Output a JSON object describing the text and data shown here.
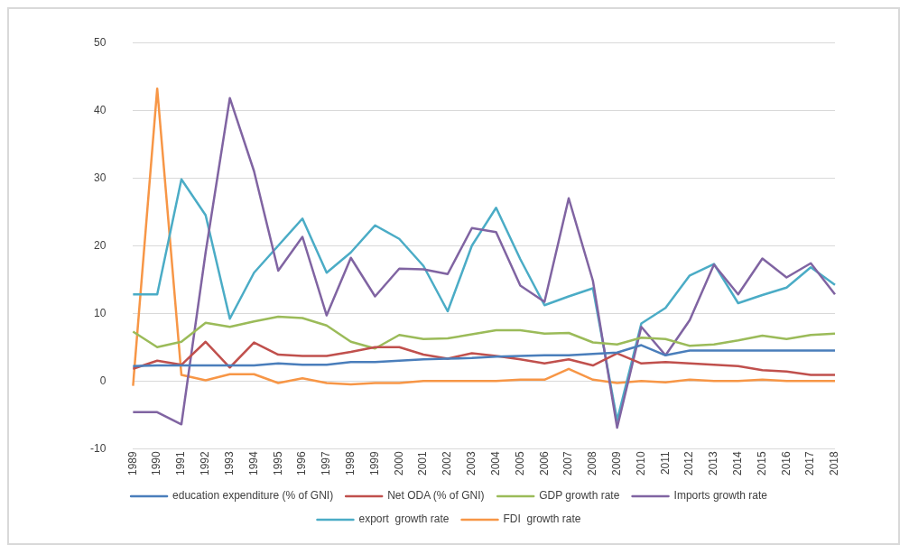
{
  "chart_data": {
    "type": "line",
    "categories": [
      "1989",
      "1990",
      "1991",
      "1992",
      "1993",
      "1994",
      "1995",
      "1996",
      "1997",
      "1998",
      "1999",
      "2000",
      "2001",
      "2002",
      "2003",
      "2004",
      "2005",
      "2006",
      "2007",
      "2008",
      "2009",
      "2010",
      "2011",
      "2012",
      "2013",
      "2014",
      "2015",
      "2016",
      "2017",
      "2018"
    ],
    "series": [
      {
        "name": "education expenditure (% of GNI)",
        "color": "#4a7ebb",
        "values": [
          2.2,
          2.3,
          2.3,
          2.3,
          2.3,
          2.3,
          2.6,
          2.4,
          2.4,
          2.8,
          2.8,
          3.0,
          3.2,
          3.3,
          3.4,
          3.6,
          3.7,
          3.8,
          3.8,
          4.0,
          4.2,
          5.3,
          3.8,
          4.5,
          4.5,
          4.5,
          4.5,
          4.5,
          4.5,
          4.5
        ]
      },
      {
        "name": "Net ODA (% of GNI)",
        "color": "#c0504d",
        "values": [
          1.8,
          3.0,
          2.4,
          5.8,
          2.0,
          5.7,
          3.9,
          3.7,
          3.7,
          4.3,
          5.0,
          5.0,
          3.9,
          3.3,
          4.1,
          3.7,
          3.2,
          2.6,
          3.2,
          2.3,
          4.1,
          2.6,
          2.8,
          2.6,
          2.4,
          2.2,
          1.6,
          1.4,
          0.9,
          0.9
        ]
      },
      {
        "name": "GDP growth rate",
        "color": "#9bbb59",
        "values": [
          7.3,
          5.0,
          5.8,
          8.6,
          8.0,
          8.8,
          9.5,
          9.3,
          8.2,
          5.8,
          4.8,
          6.8,
          6.2,
          6.3,
          6.9,
          7.5,
          7.5,
          7.0,
          7.1,
          5.7,
          5.4,
          6.4,
          6.2,
          5.2,
          5.4,
          6.0,
          6.7,
          6.2,
          6.8,
          7.0
        ]
      },
      {
        "name": "Imports growth rate",
        "color": "#8064a2",
        "values": [
          -4.6,
          -4.6,
          -6.4,
          19,
          41.8,
          31,
          16.3,
          21.3,
          9.7,
          18.2,
          12.5,
          16.6,
          16.5,
          15.8,
          22.6,
          22.0,
          14.1,
          11.7,
          27.0,
          14.8,
          -6.9,
          8.0,
          3.8,
          9.0,
          17.2,
          12.8,
          18.1,
          15.3,
          17.4,
          12.8
        ]
      },
      {
        "name": "export  growth rate",
        "color": "#4bacc6",
        "values": [
          12.8,
          12.8,
          29.8,
          24.5,
          9.2,
          16,
          20,
          24,
          16,
          19,
          23,
          21,
          17,
          10.3,
          20,
          25.6,
          18,
          11.2,
          12.5,
          13.7,
          -5.8,
          8.5,
          10.8,
          15.6,
          17.3,
          11.5,
          12.7,
          13.8,
          16.8,
          14.2
        ]
      },
      {
        "name": "FDI  growth rate",
        "color": "#f79646",
        "values": [
          -0.7,
          43.2,
          0.9,
          0.1,
          1.0,
          1.0,
          -0.3,
          0.4,
          -0.3,
          -0.5,
          -0.3,
          -0.3,
          0.0,
          0.0,
          0.0,
          0.0,
          0.2,
          0.2,
          1.8,
          0.2,
          -0.3,
          0.0,
          -0.2,
          0.2,
          0.0,
          0.0,
          0.2,
          0.0,
          0.0,
          0.0
        ]
      }
    ],
    "ylim": [
      -10,
      50
    ],
    "yticks": [
      -10,
      0,
      10,
      20,
      30,
      40,
      50
    ],
    "grid": "y",
    "legend": "bottom",
    "marker": "none",
    "line_style": "solid"
  }
}
